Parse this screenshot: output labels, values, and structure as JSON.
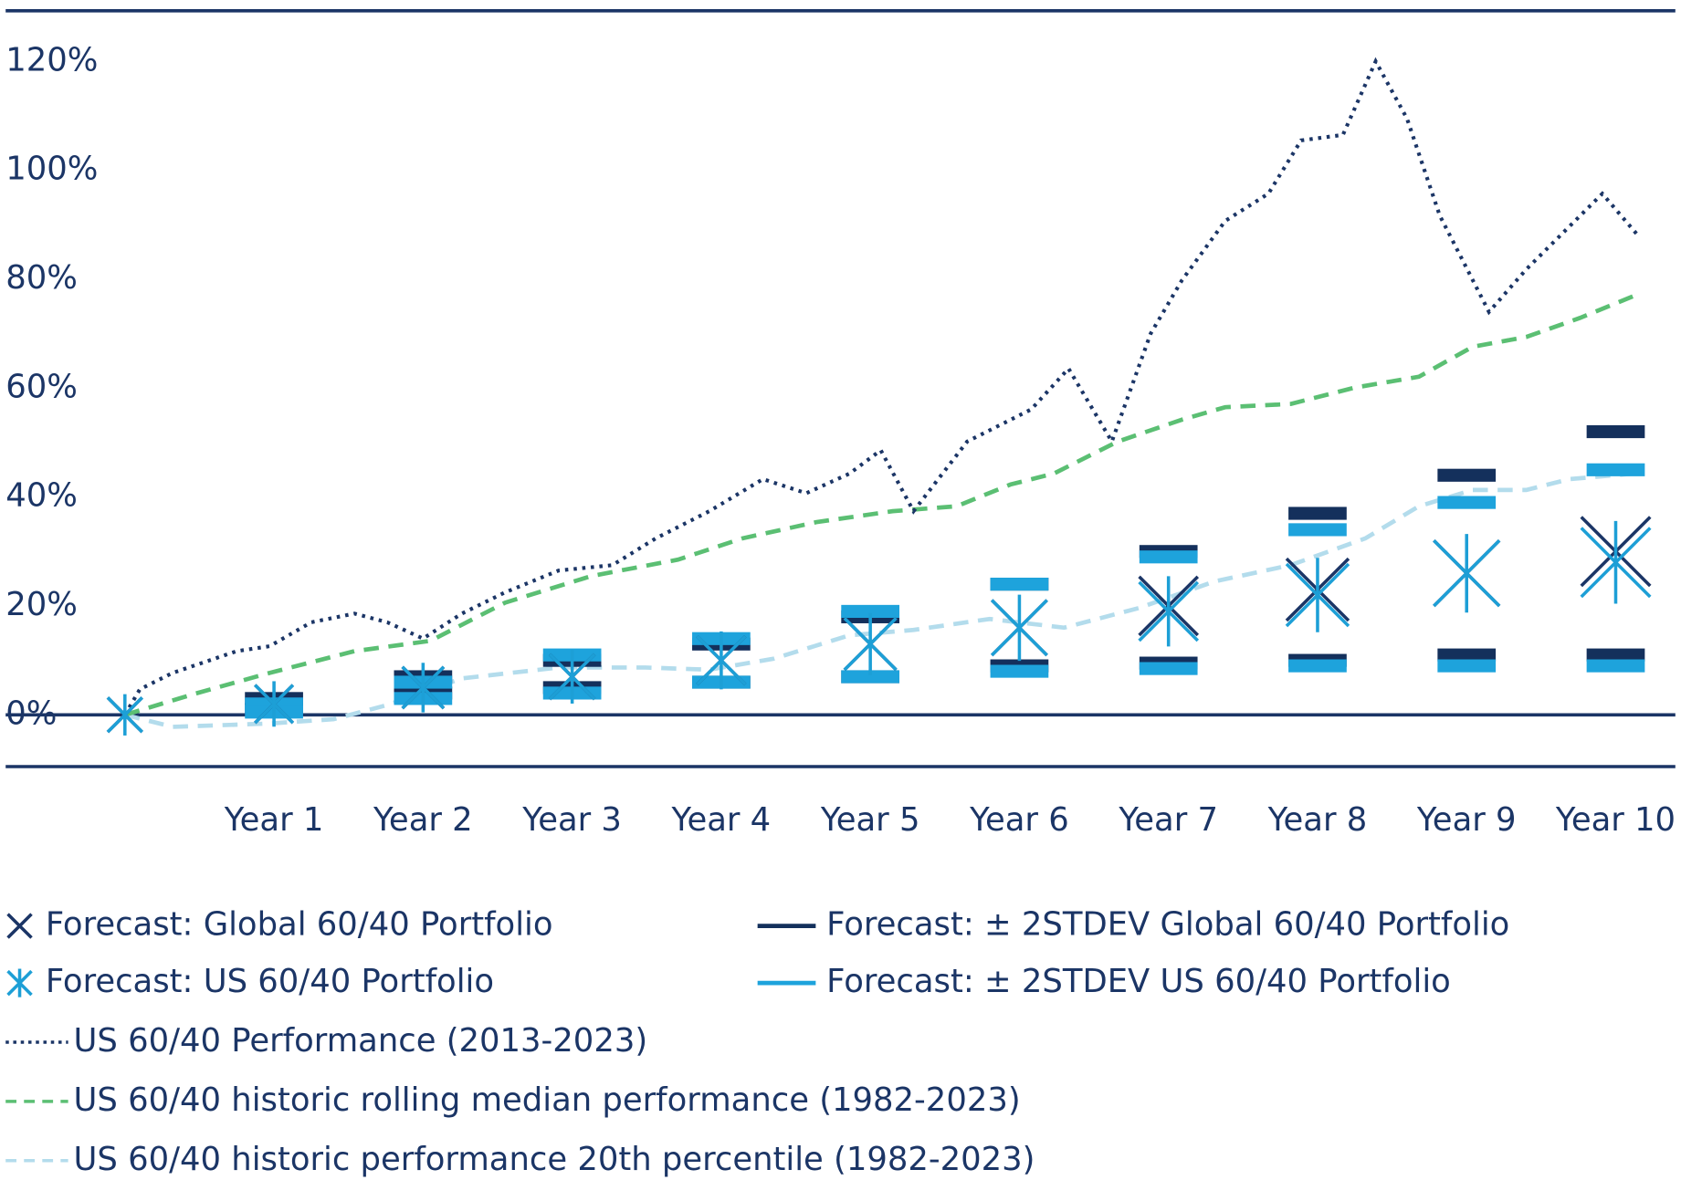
{
  "chart_data": {
    "type": "line",
    "xlim": [
      -0.8,
      10.4
    ],
    "xticks": [
      {
        "value": 1,
        "label": "Year 1"
      },
      {
        "value": 2,
        "label": "Year 2"
      },
      {
        "value": 3,
        "label": "Year 3"
      },
      {
        "value": 4,
        "label": "Year 4"
      },
      {
        "value": 5,
        "label": "Year 5"
      },
      {
        "value": 6,
        "label": "Year 6"
      },
      {
        "value": 7,
        "label": "Year 7"
      },
      {
        "value": 8,
        "label": "Year 8"
      },
      {
        "value": 9,
        "label": "Year 9"
      },
      {
        "value": 10,
        "label": "Year 10"
      }
    ],
    "ylim": [
      -9.5,
      129.3
    ],
    "yticks": [
      {
        "value": 0,
        "label": "0%"
      },
      {
        "value": 20,
        "label": "20%"
      },
      {
        "value": 40,
        "label": "40%"
      },
      {
        "value": 60,
        "label": "60%"
      },
      {
        "value": 80,
        "label": "80%"
      },
      {
        "value": 100,
        "label": "100%"
      },
      {
        "value": 120,
        "label": "120%"
      }
    ],
    "series": [
      {
        "name": "Forecast: Global 60/40 Portfolio",
        "style": "x",
        "color": "#1b3566",
        "x": [
          0,
          1,
          2,
          3,
          4,
          5,
          6,
          7,
          8,
          9,
          10
        ],
        "values": [
          0,
          2,
          5,
          7,
          10,
          13,
          16,
          20,
          23,
          26,
          30
        ]
      },
      {
        "name": "Forecast: US 60/40 Portfolio",
        "style": "asterisk",
        "color": "#1d9fd6",
        "x": [
          0,
          1,
          2,
          3,
          4,
          5,
          6,
          7,
          8,
          9,
          10
        ],
        "values": [
          0,
          2,
          5,
          7,
          10,
          13,
          16,
          19,
          22,
          26,
          28
        ]
      },
      {
        "name": "Forecast: ± 2STDEV Global 60/40 Portfolio",
        "style": "range",
        "color": "#14305c",
        "x": [
          1,
          2,
          3,
          4,
          5,
          6,
          7,
          8,
          9,
          10
        ],
        "upper": [
          3,
          7,
          10,
          13,
          18,
          24,
          30,
          37,
          44,
          52
        ],
        "lower": [
          1,
          4,
          5,
          6,
          7,
          9,
          9.5,
          10,
          11,
          11
        ]
      },
      {
        "name": "Forecast: ± 2STDEV US 60/40 Portfolio",
        "style": "range",
        "color": "#1ea3dc",
        "x": [
          1,
          2,
          3,
          4,
          5,
          6,
          7,
          8,
          9,
          10
        ],
        "upper": [
          2,
          6,
          11,
          14,
          19,
          24,
          29,
          34,
          39,
          45
        ],
        "lower": [
          0.5,
          3,
          4,
          6,
          7,
          8,
          8.5,
          9,
          9,
          9
        ]
      },
      {
        "name": "US 60/40 Performance (2013-2023)",
        "style": "dotted",
        "color": "#1b3566",
        "x": [
          0,
          0.1,
          0.32,
          0.75,
          0.97,
          1.25,
          1.54,
          1.76,
          2.0,
          2.26,
          2.55,
          2.91,
          3.27,
          3.56,
          3.92,
          4.28,
          4.57,
          4.86,
          5.07,
          5.29,
          5.65,
          6.08,
          6.33,
          6.62,
          6.88,
          7.09,
          7.38,
          7.67,
          7.89,
          8.17,
          8.39,
          8.6,
          8.82,
          9.15,
          9.4,
          9.69,
          9.91,
          10.16
        ],
        "values": [
          0,
          4.7,
          7.7,
          11.7,
          12.6,
          17,
          18.6,
          17,
          14,
          18.6,
          22.5,
          26.5,
          27.5,
          32.4,
          37.4,
          43.3,
          40.7,
          44.3,
          48.6,
          37.4,
          50.2,
          56.1,
          63.6,
          50.2,
          70,
          79.8,
          90.7,
          95.7,
          105.5,
          106.5,
          120,
          109.5,
          91.7,
          74,
          81.8,
          89.7,
          95.7,
          87.7
        ]
      },
      {
        "name": "US 60/40 historic rolling median performance (1982-2023)",
        "style": "dashed",
        "color": "#5bbf73",
        "x": [
          0,
          0.46,
          0.97,
          1.54,
          2.05,
          2.55,
          3.13,
          3.71,
          4.14,
          4.64,
          5.15,
          5.58,
          5.94,
          6.23,
          6.66,
          7.09,
          7.38,
          7.82,
          8.25,
          8.68,
          9.04,
          9.4,
          9.76,
          10.12
        ],
        "values": [
          0,
          3.8,
          7.7,
          11.7,
          13.6,
          20.6,
          25.5,
          28.5,
          32.4,
          35.4,
          37.4,
          38.3,
          42.3,
          44.3,
          50.2,
          54.2,
          56.5,
          57.1,
          60.1,
          62.1,
          67.6,
          69.4,
          72.9,
          76.9
        ]
      },
      {
        "name": "US 60/40 historic performance 20th percentile (1982-2023)",
        "style": "dashed",
        "color": "#b3dcec",
        "x": [
          0,
          0.32,
          0.97,
          1.4,
          1.76,
          2.26,
          2.91,
          3.49,
          3.92,
          4.35,
          4.86,
          5.29,
          5.8,
          6.3,
          6.8,
          7.31,
          7.82,
          8.32,
          8.68,
          9.04,
          9.4,
          9.69,
          10.12
        ],
        "values": [
          0,
          -2.2,
          -1.6,
          -0.8,
          1.8,
          6.7,
          8.7,
          8.7,
          8.3,
          10.3,
          14.6,
          15.6,
          17.6,
          16,
          19.6,
          24.5,
          27.5,
          32.4,
          38.3,
          41.3,
          41.3,
          43.3,
          44.3
        ]
      }
    ]
  }
}
